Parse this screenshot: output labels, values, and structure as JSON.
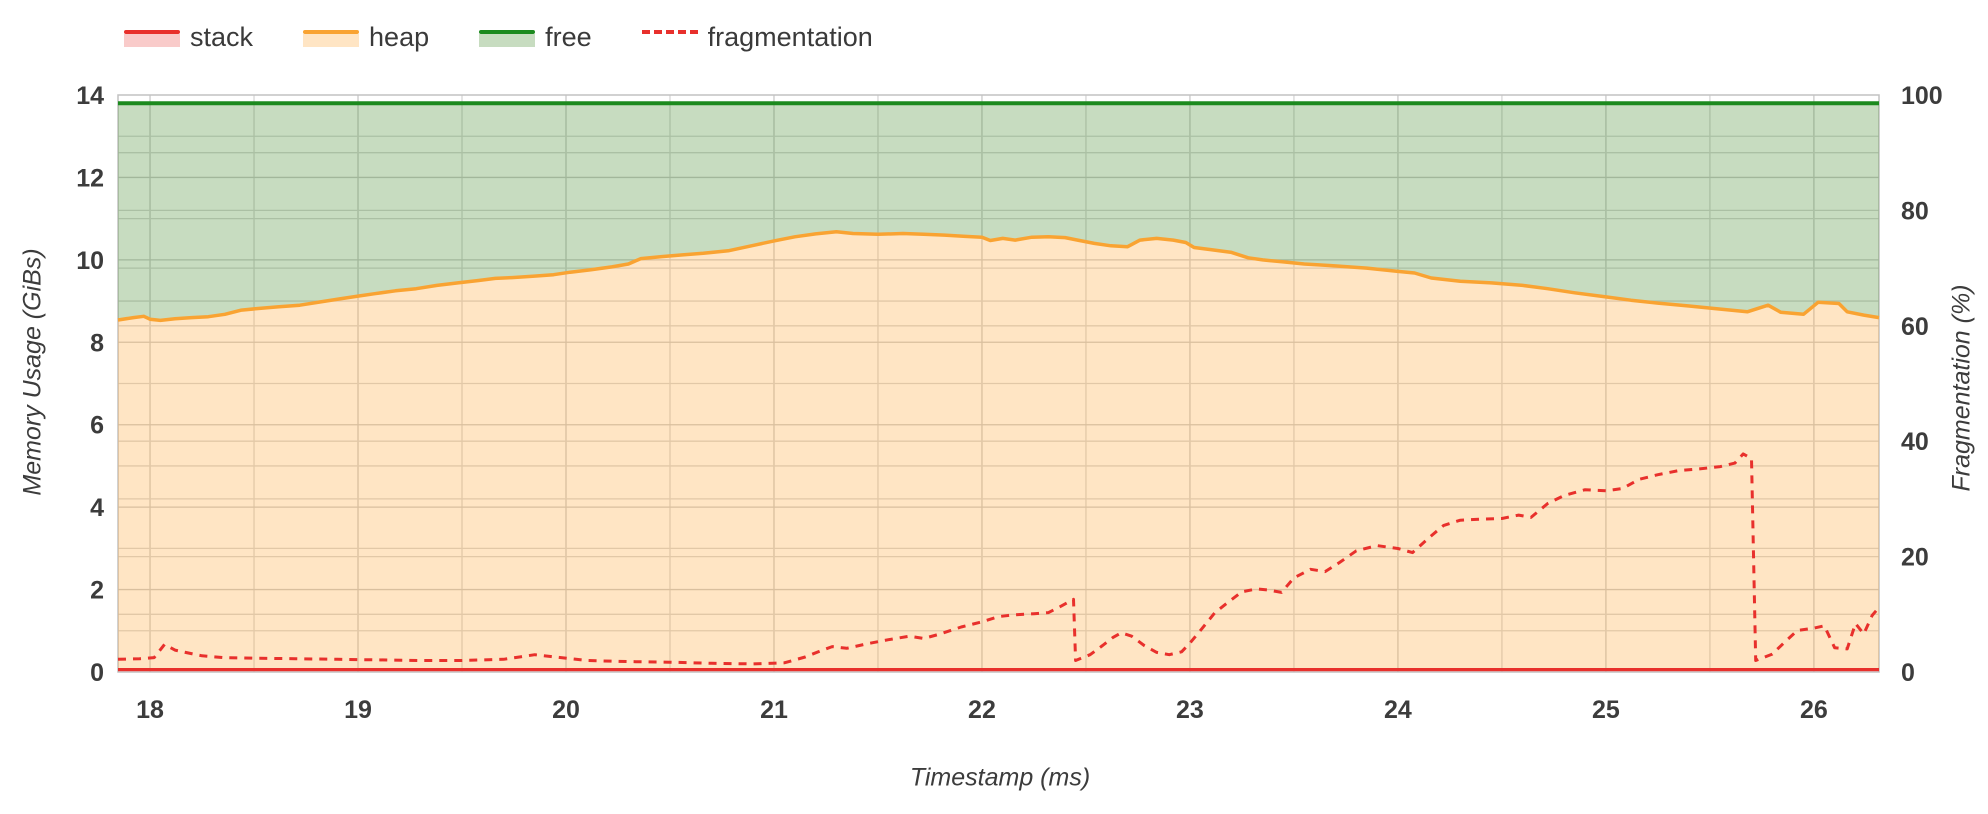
{
  "axes": {
    "x_title": "Timestamp (ms)",
    "y_left_title": "Memory Usage (GiBs)",
    "y_right_title": "Fragmentation (%)"
  },
  "legend": {
    "items": [
      {
        "label": "stack",
        "series": "stack"
      },
      {
        "label": "heap",
        "series": "heap"
      },
      {
        "label": "free",
        "series": "free"
      },
      {
        "label": "fragmentation",
        "series": "fragmentation"
      }
    ]
  },
  "chart_data": {
    "type": "area",
    "title": "",
    "xlabel": "Timestamp (ms)",
    "ylabel_left": "Memory Usage (GiBs)",
    "ylabel_right": "Fragmentation (%)",
    "x_range": [
      17.846,
      26.313
    ],
    "y_left_range": [
      0,
      14
    ],
    "y_right_range": [
      0,
      100
    ],
    "x_ticks": [
      18,
      19,
      20,
      21,
      22,
      23,
      24,
      25,
      26
    ],
    "y_left_ticks": [
      0,
      2,
      4,
      6,
      8,
      10,
      12,
      14
    ],
    "y_right_ticks": [
      0,
      20,
      40,
      60,
      80,
      100
    ],
    "grid": {
      "x_minor_step": 0.5,
      "y_left_minor_step": 1.0,
      "y_right_minor_step": 10,
      "grid_on": true
    },
    "legend_position": "top-left",
    "total_memory_gib": 13.8,
    "stack_gib": 0.06,
    "colors": {
      "stack_line": "#e8302c",
      "stack_fill": "rgba(232,48,44,0.25)",
      "heap_line": "#f9a332",
      "heap_fill": "rgba(255,170,60,0.30)",
      "free_line": "#1c8a1e",
      "free_fill": "rgba(80,145,60,0.32)",
      "frag_line": "#e8302c",
      "grid_minor": "#d6d6d6",
      "grid_major": "#c9c9c9",
      "border": "#c2c2c2",
      "tick_text": "#3c3c3c"
    },
    "series": [
      {
        "name": "stack",
        "axis": "left",
        "style": "area",
        "points": [
          [
            17.846,
            0.06
          ],
          [
            26.313,
            0.06
          ]
        ]
      },
      {
        "name": "heap",
        "axis": "left",
        "style": "area",
        "points": [
          [
            17.846,
            8.54
          ],
          [
            17.92,
            8.6
          ],
          [
            17.97,
            8.63
          ],
          [
            18.0,
            8.56
          ],
          [
            18.05,
            8.53
          ],
          [
            18.12,
            8.57
          ],
          [
            18.2,
            8.6
          ],
          [
            18.28,
            8.62
          ],
          [
            18.36,
            8.68
          ],
          [
            18.44,
            8.78
          ],
          [
            18.52,
            8.82
          ],
          [
            18.62,
            8.86
          ],
          [
            18.72,
            8.9
          ],
          [
            18.82,
            8.98
          ],
          [
            18.92,
            9.06
          ],
          [
            19.0,
            9.12
          ],
          [
            19.08,
            9.18
          ],
          [
            19.18,
            9.25
          ],
          [
            19.28,
            9.3
          ],
          [
            19.38,
            9.38
          ],
          [
            19.48,
            9.44
          ],
          [
            19.58,
            9.5
          ],
          [
            19.66,
            9.55
          ],
          [
            19.74,
            9.57
          ],
          [
            19.84,
            9.6
          ],
          [
            19.94,
            9.64
          ],
          [
            20.02,
            9.7
          ],
          [
            20.12,
            9.76
          ],
          [
            20.22,
            9.83
          ],
          [
            20.3,
            9.9
          ],
          [
            20.36,
            10.03
          ],
          [
            20.46,
            10.08
          ],
          [
            20.56,
            10.12
          ],
          [
            20.66,
            10.16
          ],
          [
            20.78,
            10.22
          ],
          [
            20.9,
            10.35
          ],
          [
            21.0,
            10.46
          ],
          [
            21.1,
            10.56
          ],
          [
            21.2,
            10.63
          ],
          [
            21.3,
            10.68
          ],
          [
            21.38,
            10.64
          ],
          [
            21.5,
            10.62
          ],
          [
            21.62,
            10.64
          ],
          [
            21.72,
            10.62
          ],
          [
            21.82,
            10.6
          ],
          [
            21.92,
            10.57
          ],
          [
            22.0,
            10.55
          ],
          [
            22.04,
            10.47
          ],
          [
            22.1,
            10.52
          ],
          [
            22.16,
            10.48
          ],
          [
            22.24,
            10.55
          ],
          [
            22.32,
            10.56
          ],
          [
            22.4,
            10.54
          ],
          [
            22.46,
            10.48
          ],
          [
            22.54,
            10.4
          ],
          [
            22.62,
            10.34
          ],
          [
            22.7,
            10.32
          ],
          [
            22.76,
            10.48
          ],
          [
            22.84,
            10.52
          ],
          [
            22.92,
            10.48
          ],
          [
            22.98,
            10.42
          ],
          [
            23.02,
            10.3
          ],
          [
            23.1,
            10.25
          ],
          [
            23.2,
            10.18
          ],
          [
            23.28,
            10.05
          ],
          [
            23.35,
            10.0
          ],
          [
            23.45,
            9.95
          ],
          [
            23.55,
            9.9
          ],
          [
            23.68,
            9.86
          ],
          [
            23.85,
            9.8
          ],
          [
            24.0,
            9.72
          ],
          [
            24.08,
            9.68
          ],
          [
            24.16,
            9.56
          ],
          [
            24.3,
            9.48
          ],
          [
            24.45,
            9.44
          ],
          [
            24.6,
            9.38
          ],
          [
            24.72,
            9.3
          ],
          [
            24.85,
            9.2
          ],
          [
            25.0,
            9.1
          ],
          [
            25.12,
            9.02
          ],
          [
            25.25,
            8.95
          ],
          [
            25.4,
            8.88
          ],
          [
            25.52,
            8.82
          ],
          [
            25.6,
            8.78
          ],
          [
            25.68,
            8.74
          ],
          [
            25.78,
            8.9
          ],
          [
            25.84,
            8.73
          ],
          [
            25.95,
            8.68
          ],
          [
            26.02,
            8.97
          ],
          [
            26.12,
            8.94
          ],
          [
            26.16,
            8.74
          ],
          [
            26.24,
            8.66
          ],
          [
            26.313,
            8.6
          ]
        ]
      },
      {
        "name": "free",
        "axis": "left",
        "style": "area",
        "points": [
          [
            17.846,
            13.8
          ],
          [
            26.313,
            13.8
          ]
        ]
      },
      {
        "name": "fragmentation",
        "axis": "right",
        "style": "dashed-line",
        "points": [
          [
            17.846,
            2.2
          ],
          [
            17.95,
            2.3
          ],
          [
            18.02,
            2.5
          ],
          [
            18.07,
            4.8
          ],
          [
            18.12,
            3.8
          ],
          [
            18.17,
            3.4
          ],
          [
            18.25,
            2.8
          ],
          [
            18.35,
            2.5
          ],
          [
            18.5,
            2.4
          ],
          [
            18.7,
            2.3
          ],
          [
            18.9,
            2.2
          ],
          [
            19.1,
            2.1
          ],
          [
            19.3,
            2.0
          ],
          [
            19.5,
            2.0
          ],
          [
            19.7,
            2.2
          ],
          [
            19.85,
            3.0
          ],
          [
            19.95,
            2.6
          ],
          [
            20.1,
            2.0
          ],
          [
            20.3,
            1.8
          ],
          [
            20.5,
            1.7
          ],
          [
            20.7,
            1.5
          ],
          [
            20.9,
            1.4
          ],
          [
            21.05,
            1.6
          ],
          [
            21.15,
            2.6
          ],
          [
            21.22,
            3.6
          ],
          [
            21.28,
            4.4
          ],
          [
            21.35,
            4.1
          ],
          [
            21.45,
            4.9
          ],
          [
            21.55,
            5.6
          ],
          [
            21.65,
            6.2
          ],
          [
            21.72,
            5.8
          ],
          [
            21.8,
            6.6
          ],
          [
            21.9,
            7.8
          ],
          [
            22.0,
            8.7
          ],
          [
            22.08,
            9.6
          ],
          [
            22.15,
            9.9
          ],
          [
            22.25,
            10.1
          ],
          [
            22.32,
            10.3
          ],
          [
            22.38,
            11.4
          ],
          [
            22.42,
            12.2
          ],
          [
            22.44,
            12.6
          ],
          [
            22.45,
            2.0
          ],
          [
            22.52,
            3.0
          ],
          [
            22.58,
            4.6
          ],
          [
            22.63,
            6.0
          ],
          [
            22.67,
            6.8
          ],
          [
            22.72,
            6.2
          ],
          [
            22.78,
            4.6
          ],
          [
            22.84,
            3.4
          ],
          [
            22.9,
            3.0
          ],
          [
            22.96,
            3.5
          ],
          [
            23.0,
            5.0
          ],
          [
            23.06,
            7.6
          ],
          [
            23.12,
            10.3
          ],
          [
            23.18,
            12.0
          ],
          [
            23.25,
            13.9
          ],
          [
            23.32,
            14.4
          ],
          [
            23.38,
            14.2
          ],
          [
            23.44,
            13.8
          ],
          [
            23.5,
            16.3
          ],
          [
            23.58,
            17.8
          ],
          [
            23.65,
            17.4
          ],
          [
            23.72,
            19.0
          ],
          [
            23.8,
            21.0
          ],
          [
            23.9,
            21.9
          ],
          [
            24.0,
            21.4
          ],
          [
            24.07,
            20.7
          ],
          [
            24.15,
            23.3
          ],
          [
            24.22,
            25.4
          ],
          [
            24.3,
            26.3
          ],
          [
            24.4,
            26.5
          ],
          [
            24.5,
            26.6
          ],
          [
            24.58,
            27.2
          ],
          [
            24.64,
            26.8
          ],
          [
            24.72,
            29.2
          ],
          [
            24.8,
            30.6
          ],
          [
            24.9,
            31.6
          ],
          [
            25.0,
            31.4
          ],
          [
            25.08,
            31.8
          ],
          [
            25.16,
            33.4
          ],
          [
            25.25,
            34.2
          ],
          [
            25.35,
            34.9
          ],
          [
            25.45,
            35.2
          ],
          [
            25.55,
            35.6
          ],
          [
            25.62,
            36.2
          ],
          [
            25.66,
            37.8
          ],
          [
            25.7,
            37.0
          ],
          [
            25.72,
            2.0
          ],
          [
            25.8,
            3.1
          ],
          [
            25.86,
            5.2
          ],
          [
            25.92,
            7.2
          ],
          [
            26.0,
            7.6
          ],
          [
            26.05,
            8.0
          ],
          [
            26.1,
            4.2
          ],
          [
            26.16,
            4.0
          ],
          [
            26.2,
            8.4
          ],
          [
            26.24,
            6.6
          ],
          [
            26.28,
            9.8
          ],
          [
            26.313,
            11.2
          ]
        ]
      }
    ]
  }
}
